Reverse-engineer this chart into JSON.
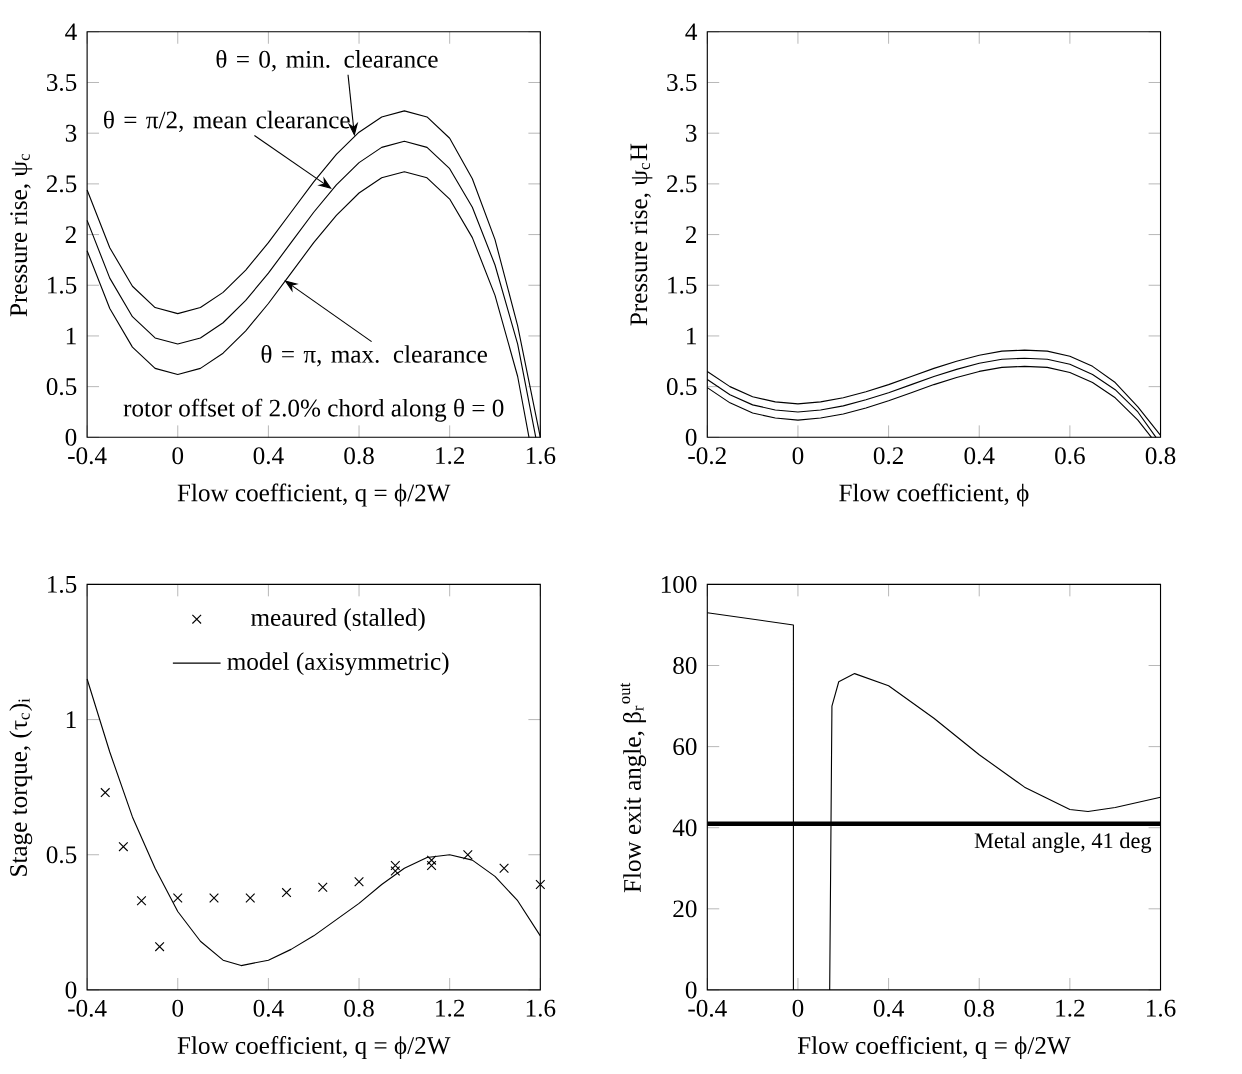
{
  "chart_data": [
    {
      "type": "line",
      "xlabel": "Flow coefficient, q = ϕ/2W",
      "ylabel": "Pressure rise, ψ$_{c}$",
      "xlim": [
        -0.4,
        1.6
      ],
      "ylim": [
        0,
        4
      ],
      "xticks": [
        -0.4,
        0,
        0.4,
        0.8,
        1.2,
        1.6
      ],
      "yticks": [
        0,
        0.5,
        1,
        1.5,
        2,
        2.5,
        3,
        3.5,
        4
      ],
      "series": [
        {
          "color": "#000000",
          "x": [
            -0.4,
            -0.3,
            -0.2,
            -0.1,
            0,
            0.1,
            0.2,
            0.3,
            0.4,
            0.5,
            0.6,
            0.7,
            0.8,
            0.9,
            1.0,
            1.1,
            1.2,
            1.3,
            1.4,
            1.5,
            1.6
          ],
          "values": [
            2.44,
            1.87,
            1.49,
            1.28,
            1.22,
            1.28,
            1.43,
            1.65,
            1.92,
            2.22,
            2.52,
            2.79,
            3.01,
            3.16,
            3.22,
            3.16,
            2.95,
            2.55,
            1.95,
            1.1,
            0
          ]
        },
        {
          "color": "#000000",
          "x": [
            -0.4,
            -0.3,
            -0.2,
            -0.1,
            0,
            0.1,
            0.2,
            0.3,
            0.4,
            0.5,
            0.6,
            0.7,
            0.8,
            0.9,
            1.0,
            1.1,
            1.2,
            1.3,
            1.4,
            1.5,
            1.58
          ],
          "values": [
            2.14,
            1.57,
            1.19,
            0.98,
            0.92,
            0.98,
            1.13,
            1.35,
            1.62,
            1.92,
            2.22,
            2.49,
            2.71,
            2.86,
            2.92,
            2.86,
            2.65,
            2.27,
            1.7,
            0.92,
            0
          ]
        },
        {
          "color": "#000000",
          "x": [
            -0.4,
            -0.3,
            -0.2,
            -0.1,
            0,
            0.1,
            0.2,
            0.3,
            0.4,
            0.5,
            0.6,
            0.7,
            0.8,
            0.9,
            1.0,
            1.1,
            1.2,
            1.3,
            1.4,
            1.5,
            1.55
          ],
          "values": [
            1.84,
            1.27,
            0.89,
            0.68,
            0.62,
            0.68,
            0.83,
            1.05,
            1.32,
            1.62,
            1.92,
            2.19,
            2.41,
            2.56,
            2.62,
            2.56,
            2.35,
            1.97,
            1.4,
            0.6,
            0
          ]
        }
      ],
      "annotations": [
        {
          "text": "θ = 0, min. clearance",
          "x": 0.78,
          "y": 2.97
        },
        {
          "text": "θ = π/2, mean clearance",
          "x": 0.68,
          "y": 2.45
        },
        {
          "text": "θ = π, max. clearance",
          "x": 0.47,
          "y": 1.55
        },
        "rotor offset of 2.0% chord along θ = 0"
      ]
    },
    {
      "type": "line",
      "xlabel": "Flow coefficient, ϕ",
      "ylabel": "Pressure rise, ψ$_{c}$H",
      "xlim": [
        -0.2,
        0.8
      ],
      "ylim": [
        0,
        4
      ],
      "xticks": [
        -0.2,
        0,
        0.2,
        0.4,
        0.6,
        0.8
      ],
      "yticks": [
        0,
        0.5,
        1,
        1.5,
        2,
        2.5,
        3,
        3.5,
        4
      ],
      "series": [
        {
          "color": "#000000",
          "x": [
            -0.2,
            -0.15,
            -0.1,
            -0.05,
            0,
            0.05,
            0.1,
            0.15,
            0.2,
            0.25,
            0.3,
            0.35,
            0.4,
            0.45,
            0.5,
            0.55,
            0.6,
            0.65,
            0.7,
            0.75,
            0.8
          ],
          "values": [
            0.65,
            0.5,
            0.4,
            0.35,
            0.33,
            0.35,
            0.39,
            0.45,
            0.52,
            0.6,
            0.68,
            0.75,
            0.81,
            0.85,
            0.86,
            0.85,
            0.8,
            0.7,
            0.54,
            0.3,
            0.02
          ]
        },
        {
          "color": "#000000",
          "x": [
            -0.2,
            -0.15,
            -0.1,
            -0.05,
            0,
            0.05,
            0.1,
            0.15,
            0.2,
            0.25,
            0.3,
            0.35,
            0.4,
            0.45,
            0.5,
            0.55,
            0.6,
            0.65,
            0.7,
            0.75,
            0.79
          ],
          "values": [
            0.57,
            0.42,
            0.32,
            0.27,
            0.25,
            0.27,
            0.31,
            0.37,
            0.44,
            0.52,
            0.6,
            0.67,
            0.73,
            0.77,
            0.78,
            0.77,
            0.72,
            0.62,
            0.47,
            0.25,
            0
          ]
        },
        {
          "color": "#000000",
          "x": [
            -0.2,
            -0.15,
            -0.1,
            -0.05,
            0,
            0.05,
            0.1,
            0.15,
            0.2,
            0.25,
            0.3,
            0.35,
            0.4,
            0.45,
            0.5,
            0.55,
            0.6,
            0.65,
            0.7,
            0.75,
            0.78
          ],
          "values": [
            0.49,
            0.34,
            0.24,
            0.19,
            0.17,
            0.19,
            0.23,
            0.29,
            0.36,
            0.44,
            0.52,
            0.59,
            0.65,
            0.69,
            0.7,
            0.69,
            0.64,
            0.54,
            0.39,
            0.17,
            0
          ]
        }
      ]
    },
    {
      "type": "line",
      "xlabel": "Flow coefficient, q = ϕ/2W",
      "ylabel": "Stage torque, (τ$_{c}$)$_{i}$",
      "xlim": [
        -0.4,
        1.6
      ],
      "ylim": [
        0,
        1.5
      ],
      "xticks": [
        -0.4,
        0,
        0.4,
        0.8,
        1.2,
        1.6
      ],
      "yticks": [
        0,
        0.5,
        1,
        1.5
      ],
      "legend": "top",
      "series": [
        {
          "type": "scatter",
          "name": "meaured (stalled)",
          "color": "#000000",
          "marker": "cross",
          "x": [
            -0.32,
            -0.24,
            -0.16,
            -0.08,
            0,
            0.16,
            0.32,
            0.48,
            0.64,
            0.8,
            0.96,
            0.96,
            1.12,
            1.12,
            1.28,
            1.44,
            1.6
          ],
          "values": [
            0.73,
            0.53,
            0.33,
            0.16,
            0.34,
            0.34,
            0.34,
            0.36,
            0.38,
            0.4,
            0.46,
            0.44,
            0.48,
            0.46,
            0.5,
            0.45,
            0.39
          ]
        },
        {
          "type": "line",
          "name": "model (axisymmetric)",
          "color": "#000000",
          "x": [
            -0.4,
            -0.3,
            -0.2,
            -0.1,
            0,
            0.1,
            0.2,
            0.28,
            0.4,
            0.5,
            0.6,
            0.7,
            0.8,
            0.9,
            1.0,
            1.1,
            1.2,
            1.3,
            1.4,
            1.5,
            1.6
          ],
          "values": [
            1.15,
            0.88,
            0.64,
            0.45,
            0.29,
            0.18,
            0.11,
            0.09,
            0.11,
            0.15,
            0.2,
            0.26,
            0.32,
            0.39,
            0.45,
            0.49,
            0.5,
            0.48,
            0.42,
            0.33,
            0.2
          ]
        }
      ]
    },
    {
      "type": "line",
      "xlabel": "Flow coefficient, q = ϕ/2W",
      "ylabel": "Flow exit angle, β$_{r}$$^{out}$",
      "xlim": [
        -0.4,
        1.6
      ],
      "ylim": [
        0,
        100
      ],
      "xticks": [
        -0.4,
        0,
        0.4,
        0.8,
        1.2,
        1.6
      ],
      "yticks": [
        0,
        20,
        40,
        60,
        80,
        100
      ],
      "series": [
        {
          "color": "#000000",
          "x": [
            -0.4,
            -0.02,
            -0.02,
            0.06,
            0.14,
            0.15,
            0.18,
            0.25,
            0.4,
            0.6,
            0.8,
            1.0,
            1.2,
            1.28,
            1.4,
            1.6
          ],
          "values": [
            93,
            90,
            0,
            null,
            0,
            70,
            76,
            78,
            75,
            67,
            58,
            50,
            44.5,
            44,
            45,
            47.5
          ]
        }
      ],
      "ref_lines": [
        {
          "axis": "y",
          "value": 41,
          "label": "Metal angle, 41 deg",
          "color": "#000000"
        }
      ]
    }
  ]
}
